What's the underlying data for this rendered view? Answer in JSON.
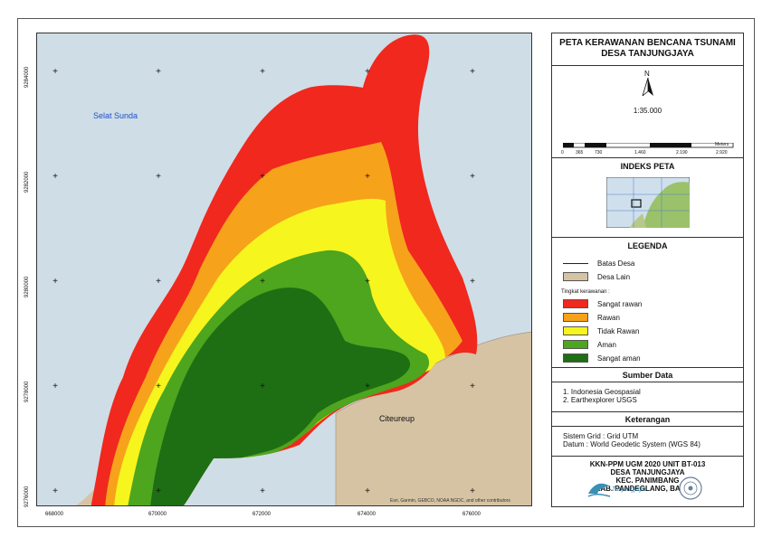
{
  "map": {
    "sea_label": "Selat Sunda",
    "town_label": "Citeureup",
    "attribution": "Esri, Garmin, GEBCO, NOAA NGDC, and other contributors",
    "x_ticks": [
      "668000",
      "670000",
      "672000",
      "674000",
      "676000"
    ],
    "y_ticks": [
      "9284000",
      "9282000",
      "9280000",
      "9278000",
      "9276000"
    ]
  },
  "panel": {
    "title_line1": "PETA KERAWANAN BENCANA TSUNAMI",
    "title_line2": "DESA TANJUNGJAYA",
    "north": "N",
    "scale_text": "1:35.000",
    "scale_ticks": [
      "0",
      "365",
      "730",
      "1.460",
      "2.190",
      "2.920"
    ],
    "scale_unit": "Meters",
    "index_heading": "INDEKS PETA",
    "legend_heading": "LEGENDA",
    "legend_items": [
      {
        "label": "Batas Desa",
        "kind": "line"
      },
      {
        "label": "Desa Lain",
        "color": "#d6c3a4"
      }
    ],
    "hazard_subheading": "Tingkat kerawanan :",
    "hazard_items": [
      {
        "label": "Sangat rawan",
        "color": "#f0281e"
      },
      {
        "label": "Rawan",
        "color": "#f7a21b"
      },
      {
        "label": "Tidak Rawan",
        "color": "#f7f51e"
      },
      {
        "label": "Aman",
        "color": "#4ea51e"
      },
      {
        "label": "Sangat aman",
        "color": "#1e6e14"
      }
    ],
    "sources_heading": "Sumber Data",
    "sources": [
      "1. Indonesia Geospasial",
      "2. Earthexplorer USGS"
    ],
    "notes_heading": "Keterangan",
    "notes": [
      "Sistem Grid  : Grid UTM",
      "Datum   : World Geodetic System (WGS 84)"
    ],
    "footer": [
      "KKN-PPM UGM 2020 UNIT BT-013",
      "DESA TANJUNGJAYA",
      "KEC. PANIMBANG",
      "KAB. PANDEGLANG, BANTEN"
    ],
    "logo_text": "Tanjungjaya"
  }
}
